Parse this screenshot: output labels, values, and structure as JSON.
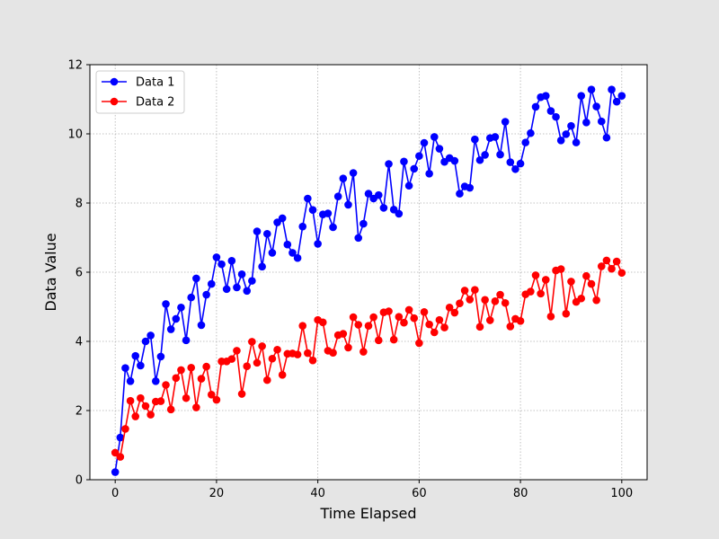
{
  "chart_data": {
    "type": "line",
    "title": "",
    "xlabel": "Time Elapsed",
    "ylabel": "Data Value",
    "xlim": [
      -5,
      105
    ],
    "ylim": [
      0,
      12
    ],
    "xticks": [
      0,
      20,
      40,
      60,
      80,
      100
    ],
    "yticks": [
      0,
      2,
      4,
      6,
      8,
      10,
      12
    ],
    "grid": true,
    "legend_position": "upper-left",
    "x": [
      0,
      1,
      2,
      3,
      4,
      5,
      6,
      7,
      8,
      9,
      10,
      11,
      12,
      13,
      14,
      15,
      16,
      17,
      18,
      19,
      20,
      21,
      22,
      23,
      24,
      25,
      26,
      27,
      28,
      29,
      30,
      31,
      32,
      33,
      34,
      35,
      36,
      37,
      38,
      39,
      40,
      41,
      42,
      43,
      44,
      45,
      46,
      47,
      48,
      49,
      50,
      51,
      52,
      53,
      54,
      55,
      56,
      57,
      58,
      59,
      60,
      61,
      62,
      63,
      64,
      65,
      66,
      67,
      68,
      69,
      70,
      71,
      72,
      73,
      74,
      75,
      76,
      77,
      78,
      79,
      80,
      81,
      82,
      83,
      84,
      85,
      86,
      87,
      88,
      89,
      90,
      91,
      92,
      93,
      94,
      95,
      96,
      97,
      98,
      99,
      100
    ],
    "series": [
      {
        "name": "Data 1",
        "color": "#0000ff",
        "values": [
          0.22,
          1.22,
          3.23,
          2.85,
          3.58,
          3.3,
          4.0,
          4.17,
          2.85,
          3.56,
          5.08,
          4.35,
          4.65,
          4.98,
          4.03,
          5.27,
          5.82,
          4.47,
          5.35,
          5.66,
          6.43,
          6.23,
          5.51,
          6.33,
          5.56,
          5.94,
          5.46,
          5.75,
          7.18,
          6.16,
          7.11,
          6.56,
          7.44,
          7.56,
          6.8,
          6.56,
          6.41,
          7.32,
          8.13,
          7.8,
          6.82,
          7.67,
          7.7,
          7.3,
          8.19,
          8.71,
          7.95,
          8.87,
          6.99,
          7.4,
          8.27,
          8.13,
          8.23,
          7.86,
          9.13,
          7.81,
          7.69,
          9.2,
          8.5,
          8.99,
          9.36,
          9.74,
          8.85,
          9.91,
          9.57,
          9.19,
          9.3,
          9.22,
          8.27,
          8.48,
          8.44,
          9.84,
          9.24,
          9.39,
          9.88,
          9.91,
          9.4,
          10.35,
          9.18,
          8.98,
          9.14,
          9.75,
          10.02,
          10.78,
          11.06,
          11.1,
          10.66,
          10.49,
          9.81,
          9.99,
          10.23,
          9.75,
          11.1,
          10.33,
          11.28,
          10.79,
          10.36,
          9.89,
          11.28,
          10.93,
          11.1
        ]
      },
      {
        "name": "Data 2",
        "color": "#ff0000",
        "values": [
          0.78,
          0.66,
          1.47,
          2.28,
          1.83,
          2.36,
          2.13,
          1.88,
          2.26,
          2.27,
          2.74,
          2.03,
          2.94,
          3.17,
          2.36,
          3.24,
          2.09,
          2.92,
          3.27,
          2.46,
          2.31,
          3.42,
          3.42,
          3.49,
          3.73,
          2.48,
          3.28,
          3.99,
          3.38,
          3.86,
          2.88,
          3.5,
          3.76,
          3.03,
          3.64,
          3.65,
          3.62,
          4.45,
          3.66,
          3.45,
          4.62,
          4.55,
          3.73,
          3.67,
          4.18,
          4.22,
          3.82,
          4.7,
          4.48,
          3.7,
          4.45,
          4.7,
          4.03,
          4.84,
          4.87,
          4.05,
          4.71,
          4.54,
          4.91,
          4.67,
          3.95,
          4.85,
          4.49,
          4.26,
          4.62,
          4.4,
          4.98,
          4.83,
          5.1,
          5.47,
          5.21,
          5.49,
          4.42,
          5.2,
          4.61,
          5.16,
          5.35,
          5.11,
          4.43,
          4.65,
          4.59,
          5.36,
          5.44,
          5.91,
          5.38,
          5.78,
          4.72,
          6.05,
          6.09,
          4.8,
          5.73,
          5.14,
          5.24,
          5.89,
          5.66,
          5.19,
          6.17,
          6.34,
          6.1,
          6.31,
          5.98
        ]
      }
    ]
  }
}
